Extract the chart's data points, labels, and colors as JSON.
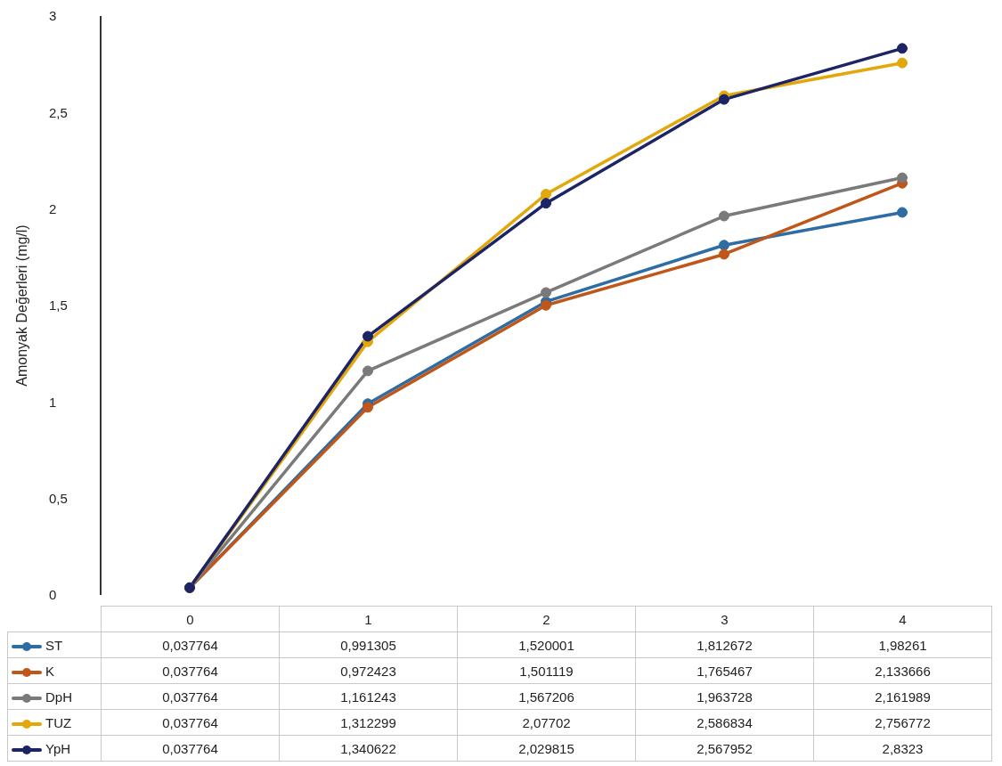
{
  "chart_data": {
    "type": "line",
    "ylabel": "Amonyak Değerleri (mg/l)",
    "categories": [
      "0",
      "1",
      "2",
      "3",
      "4"
    ],
    "ylim": [
      0,
      3
    ],
    "yticks": [
      0,
      {
        "value": 0.5,
        "label": "0,5"
      },
      1,
      {
        "value": 1.5,
        "label": "1,5"
      },
      2,
      {
        "value": 2.5,
        "label": "2,5"
      },
      3
    ],
    "grid": false,
    "legend": "bottom",
    "marker": "circle",
    "line_style": "solid",
    "series": [
      {
        "name": "ST",
        "color": "#2e6da4",
        "values": [
          0.037764,
          0.991305,
          1.520001,
          1.812672,
          1.98261
        ],
        "value_labels": [
          "0,037764",
          "0,991305",
          "1,520001",
          "1,812672",
          "1,98261"
        ]
      },
      {
        "name": "K",
        "color": "#c0561a",
        "values": [
          0.037764,
          0.972423,
          1.501119,
          1.765467,
          2.133666
        ],
        "value_labels": [
          "0,037764",
          "0,972423",
          "1,501119",
          "1,765467",
          "2,133666"
        ]
      },
      {
        "name": "DpH",
        "color": "#7a7a7a",
        "values": [
          0.037764,
          1.161243,
          1.567206,
          1.963728,
          2.161989
        ],
        "value_labels": [
          "0,037764",
          "1,161243",
          "1,567206",
          "1,963728",
          "2,161989"
        ]
      },
      {
        "name": "TUZ",
        "color": "#e2a70a",
        "values": [
          0.037764,
          1.312299,
          2.07702,
          2.586834,
          2.756772
        ],
        "value_labels": [
          "0,037764",
          "1,312299",
          "2,07702",
          "2,586834",
          "2,756772"
        ]
      },
      {
        "name": "YpH",
        "color": "#1c2466",
        "values": [
          0.037764,
          1.340622,
          2.029815,
          2.567952,
          2.8323
        ],
        "value_labels": [
          "0,037764",
          "1,340622",
          "2,029815",
          "2,567952",
          "2,8323"
        ]
      }
    ]
  }
}
